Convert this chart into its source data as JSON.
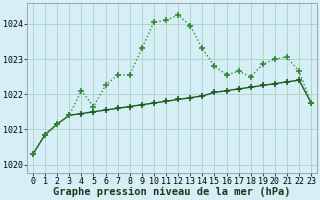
{
  "title": "Graphe pression niveau de la mer (hPa)",
  "background_color": "#d6eef5",
  "grid_color": "#b0d4cc",
  "line1_color": "#1a5c1a",
  "line2_color": "#2e8b2e",
  "x_hours": [
    0,
    1,
    2,
    3,
    4,
    5,
    6,
    7,
    8,
    9,
    10,
    11,
    12,
    13,
    14,
    15,
    16,
    17,
    18,
    19,
    20,
    21,
    22,
    23
  ],
  "line1_y": [
    1020.3,
    1020.85,
    1021.15,
    1021.4,
    1021.45,
    1021.5,
    1021.55,
    1021.6,
    1021.65,
    1021.7,
    1021.75,
    1021.8,
    1021.85,
    1021.9,
    1021.95,
    1022.05,
    1022.1,
    1022.15,
    1022.2,
    1022.25,
    1022.3,
    1022.35,
    1022.4,
    1021.75
  ],
  "line2_y": [
    1020.3,
    1020.85,
    1021.15,
    1021.4,
    1022.1,
    1021.65,
    1022.25,
    1022.55,
    1022.55,
    1023.3,
    1024.05,
    1024.1,
    1024.25,
    1023.95,
    1023.3,
    1022.8,
    1022.55,
    1022.65,
    1022.5,
    1022.85,
    1023.0,
    1023.05,
    1022.65,
    1021.75
  ],
  "ylim": [
    1019.75,
    1024.6
  ],
  "yticks": [
    1020,
    1021,
    1022,
    1023,
    1024
  ],
  "xlim": [
    -0.5,
    23.5
  ],
  "xticks": [
    0,
    1,
    2,
    3,
    4,
    5,
    6,
    7,
    8,
    9,
    10,
    11,
    12,
    13,
    14,
    15,
    16,
    17,
    18,
    19,
    20,
    21,
    22,
    23
  ],
  "marker": "+",
  "marker_size": 4,
  "linewidth1": 1.0,
  "linewidth2": 1.0,
  "title_fontsize": 7.5,
  "tick_fontsize": 6.0
}
